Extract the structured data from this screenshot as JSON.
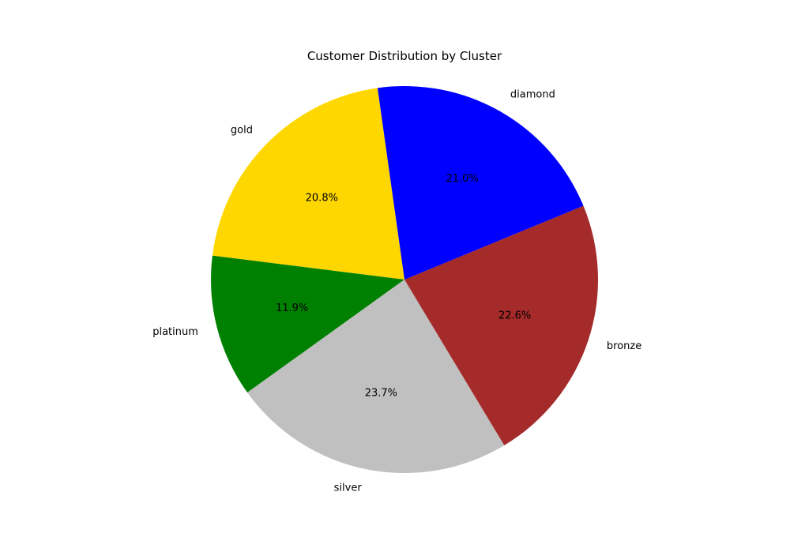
{
  "chart_data": {
    "type": "pie",
    "title": "Customer Distribution by Cluster",
    "start_angle": 98,
    "direction": "counterclockwise",
    "slices": [
      {
        "label": "gold",
        "value": 20.8,
        "pct_label": "20.8%",
        "color": "#FFD700"
      },
      {
        "label": "platinum",
        "value": 11.9,
        "pct_label": "11.9%",
        "color": "#008000"
      },
      {
        "label": "silver",
        "value": 23.7,
        "pct_label": "23.7%",
        "color": "#C0C0C0"
      },
      {
        "label": "bronze",
        "value": 22.6,
        "pct_label": "22.6%",
        "color": "#A52A2A"
      },
      {
        "label": "diamond",
        "value": 21.0,
        "pct_label": "21.0%",
        "color": "#0000FF"
      }
    ]
  }
}
